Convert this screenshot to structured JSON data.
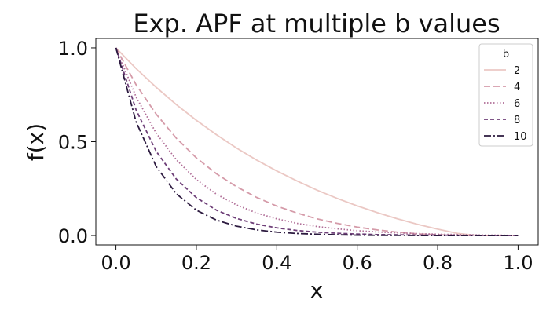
{
  "chart_data": {
    "type": "line",
    "title": "Exp. APF at multiple b values",
    "xlabel": "x",
    "ylabel": "f(x)",
    "xlim": [
      -0.05,
      1.05
    ],
    "ylim": [
      -0.05,
      1.05
    ],
    "xticks": [
      0.0,
      0.2,
      0.4,
      0.6,
      0.8,
      1.0
    ],
    "xtick_labels": [
      "0.0",
      "0.2",
      "0.4",
      "0.6",
      "0.8",
      "1.0"
    ],
    "yticks": [
      0.0,
      0.5,
      1.0
    ],
    "ytick_labels": [
      "0.0",
      "0.5",
      "1.0"
    ],
    "grid": false,
    "legend": {
      "title": "b",
      "position": "top-right"
    },
    "x": [
      0.0,
      0.05,
      0.1,
      0.15,
      0.2,
      0.25,
      0.3,
      0.35,
      0.4,
      0.45,
      0.5,
      0.55,
      0.6,
      0.65,
      0.7,
      0.75,
      0.8,
      0.85,
      0.9,
      0.95,
      1.0
    ],
    "series": [
      {
        "name": "2",
        "color": "#ebc8c4",
        "dash": "solid",
        "values": [
          1.0,
          0.89,
          0.79,
          0.698,
          0.614,
          0.537,
          0.466,
          0.402,
          0.344,
          0.291,
          0.242,
          0.198,
          0.158,
          0.122,
          0.089,
          0.06,
          0.034,
          0.011,
          0.0,
          0.0,
          0.0
        ]
      },
      {
        "name": "4",
        "color": "#d59ba9",
        "dash": "dashed",
        "values": [
          1.0,
          0.804,
          0.647,
          0.519,
          0.414,
          0.329,
          0.26,
          0.203,
          0.157,
          0.12,
          0.089,
          0.065,
          0.045,
          0.03,
          0.018,
          0.009,
          0.004,
          0.001,
          0.0,
          0.0,
          0.0
        ]
      },
      {
        "name": "6",
        "color": "#b06e97",
        "dash": "dotted",
        "values": [
          1.0,
          0.739,
          0.546,
          0.404,
          0.298,
          0.22,
          0.163,
          0.12,
          0.089,
          0.065,
          0.048,
          0.036,
          0.026,
          0.019,
          0.014,
          0.01,
          0.007,
          0.005,
          0.003,
          0.002,
          0.0
        ]
      },
      {
        "name": "8",
        "color": "#6e3f78",
        "dash": "dashdash",
        "values": [
          1.0,
          0.67,
          0.449,
          0.301,
          0.202,
          0.135,
          0.091,
          0.061,
          0.041,
          0.027,
          0.018,
          0.012,
          0.008,
          0.005,
          0.004,
          0.002,
          0.002,
          0.001,
          0.001,
          0.0,
          0.0
        ]
      },
      {
        "name": "10",
        "color": "#2c1a3f",
        "dash": "dashdot",
        "values": [
          1.0,
          0.607,
          0.368,
          0.223,
          0.135,
          0.082,
          0.05,
          0.03,
          0.018,
          0.011,
          0.007,
          0.004,
          0.002,
          0.001,
          0.001,
          0.0,
          0.0,
          0.0,
          0.0,
          0.0,
          0.0
        ]
      }
    ]
  }
}
